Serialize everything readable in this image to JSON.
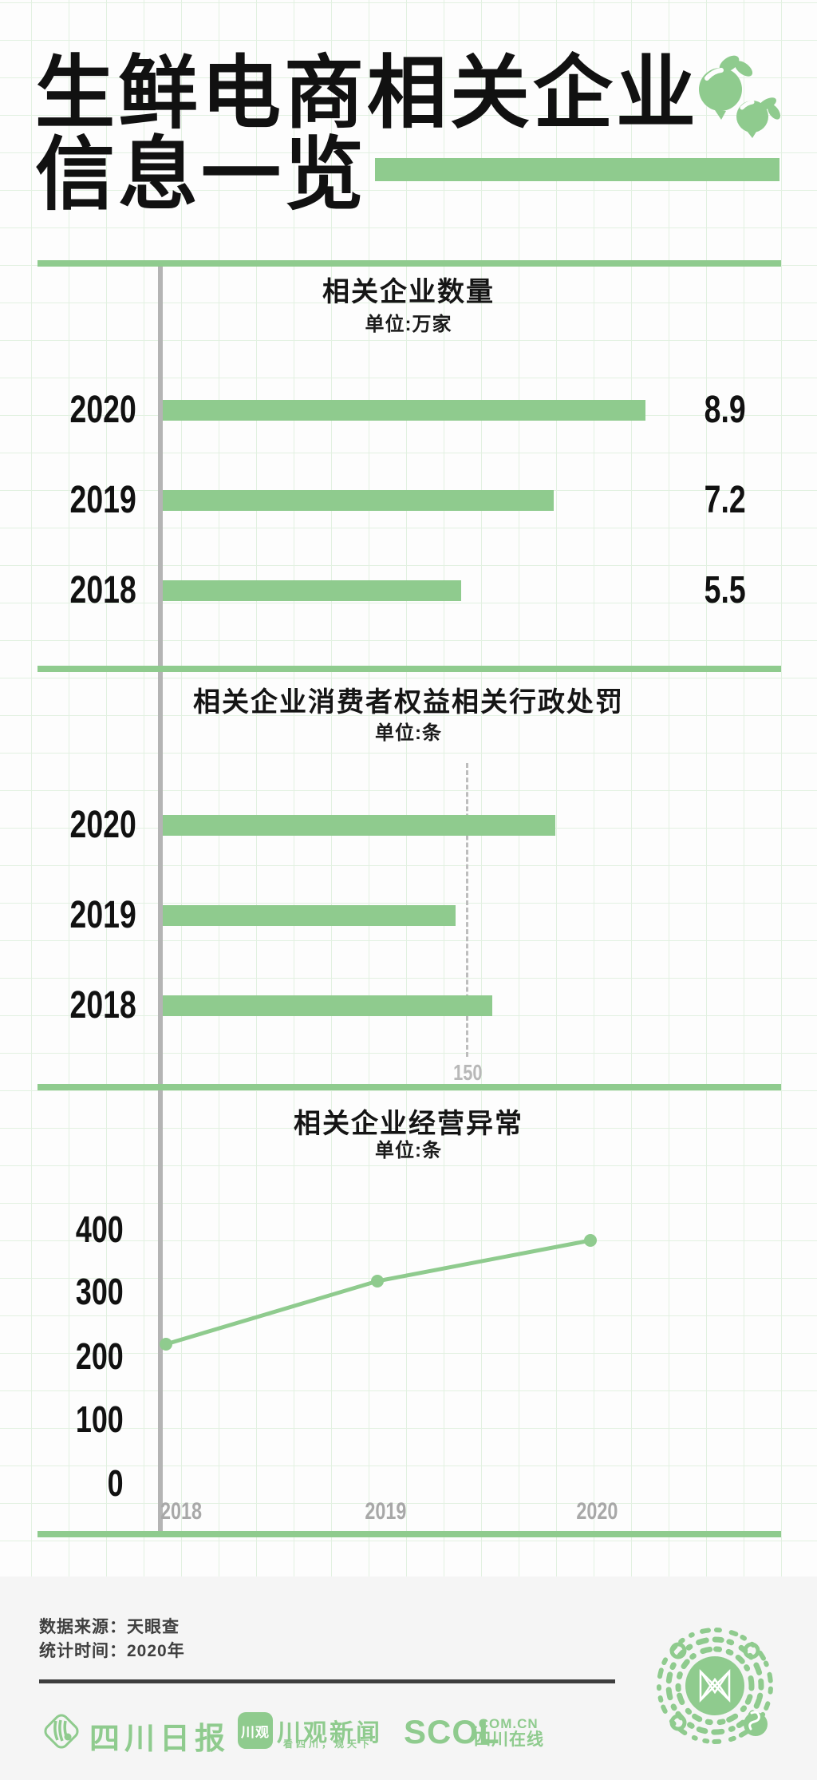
{
  "colors": {
    "green": "#8fcb8e",
    "grid_green": "#e2f1e1",
    "axis_gray": "#b4b4b4",
    "muted_gray": "#a8a8a8",
    "ref_gray": "#b8b8b8",
    "text_black": "#141414",
    "footer_bg": "#f5f5f5",
    "footer_text": "#3f3f3f"
  },
  "header": {
    "title_line1": "生鲜电商相关企业",
    "title_line2": "信息一览",
    "fruits_icon": "two-green-fruits"
  },
  "chart1": {
    "title": "相关企业数量",
    "unit": "单位:万家",
    "rows": [
      {
        "year": "2020",
        "value": "8.9"
      },
      {
        "year": "2019",
        "value": "7.2"
      },
      {
        "year": "2018",
        "value": "5.5"
      }
    ]
  },
  "chart2": {
    "title": "相关企业消费者权益相关行政处罚",
    "unit": "单位:条",
    "rows": [
      {
        "year": "2020"
      },
      {
        "year": "2019"
      },
      {
        "year": "2018"
      }
    ],
    "ref_line_label": "150"
  },
  "chart3": {
    "title": "相关企业经营异常",
    "unit": "单位:条",
    "y_ticks": [
      "400",
      "300",
      "200",
      "100",
      "0"
    ],
    "x_ticks": [
      "2018",
      "2019",
      "2020"
    ]
  },
  "footer": {
    "source_line": "数据来源：天眼查",
    "time_line": "统计时间：2020年",
    "logos": {
      "sichuan_daily": "四川日报",
      "chuanguan_badge": "川观",
      "chuanguan_name": "川观新闻",
      "chuanguan_tagline": "看四川，观天下",
      "scol": "SCOL",
      "scol_domain": ".COM.CN",
      "scol_site": "四川在线"
    }
  },
  "chart_data": [
    {
      "type": "bar",
      "orientation": "horizontal",
      "title": "相关企业数量",
      "unit": "万家",
      "categories": [
        "2020",
        "2019",
        "2018"
      ],
      "values": [
        8.9,
        7.2,
        5.5
      ],
      "value_labels": [
        "8.9",
        "7.2",
        "5.5"
      ],
      "xlim": [
        0,
        12
      ],
      "grid": "graph-paper-background",
      "legend": false
    },
    {
      "type": "bar",
      "orientation": "horizontal",
      "title": "相关企业消费者权益相关行政处罚",
      "unit": "条",
      "categories": [
        "2020",
        "2019",
        "2018"
      ],
      "values": [
        193,
        144,
        162
      ],
      "reference_line": {
        "value": 150,
        "label": "150",
        "style": "dashed-vertical"
      },
      "xlim": [
        0,
        300
      ],
      "grid": "graph-paper-background",
      "legend": false
    },
    {
      "type": "line",
      "title": "相关企业经营异常",
      "unit": "条",
      "x": [
        "2018",
        "2019",
        "2020"
      ],
      "values": [
        220,
        320,
        385
      ],
      "y_ticks": [
        0,
        100,
        200,
        300,
        400
      ],
      "ylim": [
        0,
        450
      ],
      "marker": "dot",
      "grid": "graph-paper-background",
      "legend": false
    }
  ]
}
